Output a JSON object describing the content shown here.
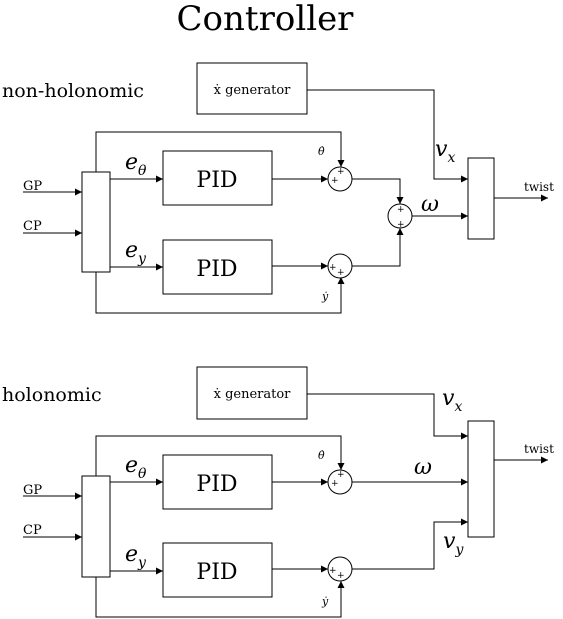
{
  "title": "Controller",
  "sections": [
    {
      "label": "non-holonomic",
      "generator": "ẋ generator",
      "pid_top": "PID",
      "pid_bottom": "PID",
      "input_goal": "GP",
      "input_current": "CP",
      "err_theta": "e",
      "err_theta_sub": "θ",
      "err_y": "e",
      "err_y_sub": "y",
      "theta_dot": "θ̇",
      "y_dot": "ẏ",
      "vx": "v",
      "vx_sub": "x",
      "omega": "ω",
      "output": "twist",
      "plus": "+"
    },
    {
      "label": "holonomic",
      "generator": "ẋ generator",
      "pid_top": "PID",
      "pid_bottom": "PID",
      "input_goal": "GP",
      "input_current": "CP",
      "err_theta": "e",
      "err_theta_sub": "θ",
      "err_y": "e",
      "err_y_sub": "y",
      "theta_dot": "θ̇",
      "y_dot": "ẏ",
      "vx": "v",
      "vx_sub": "x",
      "omega": "ω",
      "vy": "v",
      "vy_sub": "y",
      "output": "twist",
      "plus": "+"
    }
  ]
}
